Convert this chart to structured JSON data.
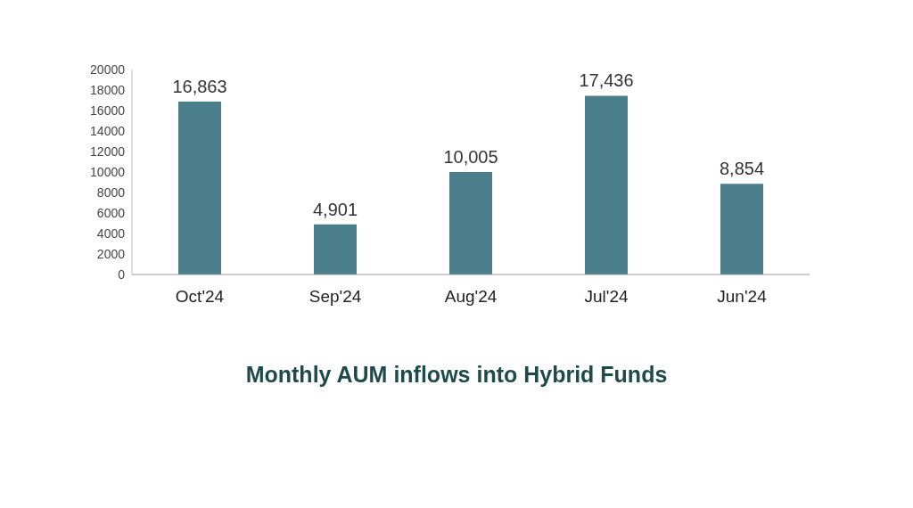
{
  "chart_data": {
    "type": "bar",
    "title": "Monthly AUM inflows into Hybrid Funds",
    "categories": [
      "Oct'24",
      "Sep'24",
      "Aug'24",
      "Jul'24",
      "Jun'24"
    ],
    "values": [
      16863,
      4901,
      10005,
      17436,
      8854
    ],
    "color": "#4b7f8c",
    "ylim": [
      0,
      20000
    ],
    "yticks": [
      0,
      2000,
      4000,
      6000,
      8000,
      10000,
      12000,
      14000,
      16000,
      18000,
      20000
    ],
    "data_labels": true,
    "value_labels": [
      "16,863",
      "4,901",
      "10,005",
      "17,436",
      "8,854"
    ],
    "grid": false,
    "legend": false
  }
}
